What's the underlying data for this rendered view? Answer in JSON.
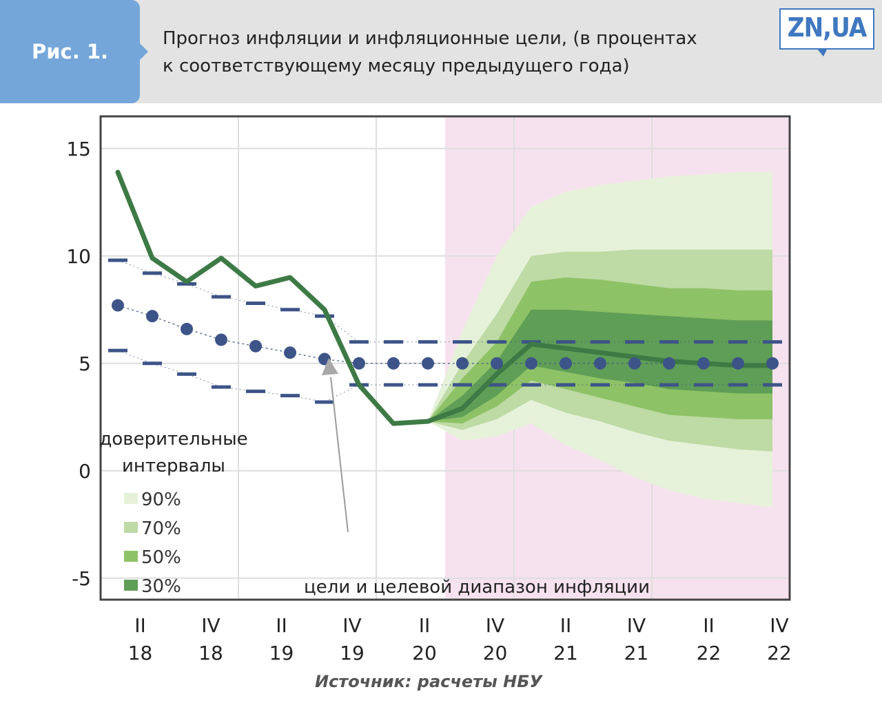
{
  "header": {
    "figure_label": "Рис. 1.",
    "title_line1": "Прогноз инфляции и инфляционные цели, (в процентах",
    "title_line2": "к соответствующему месяцу предыдущего года)",
    "logo": "ZN,UA"
  },
  "source": "Источник: расчеты НБУ",
  "colors": {
    "forecast_shade": "#f6e2ee",
    "band_90": "#e6f1da",
    "band_70": "#bedaa5",
    "band_50": "#8ec266",
    "band_30": "#5f9e56",
    "actual_line": "#3d7a45",
    "target_color": "#3d5488"
  },
  "chart_data": {
    "type": "line",
    "x": [
      0,
      1,
      2,
      3,
      4,
      5,
      6,
      7,
      8,
      9,
      10,
      11,
      12,
      13,
      14,
      15,
      16,
      17,
      18,
      19
    ],
    "x_tick_labels": [
      {
        "x": 0.65,
        "top": "II",
        "bottom": "18"
      },
      {
        "x": 2.7,
        "top": "IV",
        "bottom": "18"
      },
      {
        "x": 4.75,
        "top": "II",
        "bottom": "19"
      },
      {
        "x": 6.8,
        "top": "IV",
        "bottom": "19"
      },
      {
        "x": 8.9,
        "top": "II",
        "bottom": "20"
      },
      {
        "x": 10.95,
        "top": "IV",
        "bottom": "20"
      },
      {
        "x": 13.0,
        "top": "II",
        "bottom": "21"
      },
      {
        "x": 15.05,
        "top": "IV",
        "bottom": "21"
      },
      {
        "x": 17.15,
        "top": "II",
        "bottom": "22"
      },
      {
        "x": 19.2,
        "top": "IV",
        "bottom": "22"
      }
    ],
    "ylim": [
      -6,
      16.5
    ],
    "xlim": [
      -0.5,
      19.5
    ],
    "y_ticks": [
      15,
      10,
      5,
      0,
      -5
    ],
    "vertical_grid_x": [
      3.5,
      7.5,
      11.5,
      15.5
    ],
    "forecast_region_start": 9.5,
    "series": [
      {
        "key": "actual",
        "x": [
          0,
          1,
          2,
          3,
          4,
          5,
          6,
          7,
          8,
          9
        ],
        "values": [
          13.9,
          9.9,
          8.8,
          9.9,
          8.6,
          9.0,
          7.5,
          4.0,
          2.2,
          2.3
        ]
      },
      {
        "key": "forecast_central",
        "x": [
          9,
          10,
          11,
          12,
          13,
          14,
          15,
          16,
          17,
          18,
          19
        ],
        "values": [
          2.3,
          2.9,
          4.5,
          5.9,
          5.7,
          5.5,
          5.3,
          5.1,
          5.0,
          4.9,
          4.9
        ]
      }
    ],
    "confidence_intervals": {
      "x": [
        9,
        10,
        11,
        12,
        13,
        14,
        15,
        16,
        17,
        18,
        19
      ],
      "legend_title_line1": "доверительные",
      "legend_title_line2": "интервалы",
      "bands": [
        {
          "label": "90%",
          "upper": [
            2.3,
            6.5,
            10.0,
            12.3,
            13.0,
            13.3,
            13.5,
            13.7,
            13.8,
            13.9,
            13.9
          ],
          "lower": [
            2.3,
            1.4,
            1.6,
            2.2,
            1.2,
            0.5,
            -0.3,
            -0.9,
            -1.3,
            -1.5,
            -1.7
          ]
        },
        {
          "label": "70%",
          "upper": [
            2.3,
            5.0,
            7.3,
            10.0,
            10.2,
            10.2,
            10.3,
            10.3,
            10.3,
            10.3,
            10.3
          ],
          "lower": [
            2.3,
            1.9,
            2.4,
            3.3,
            2.7,
            2.3,
            1.8,
            1.4,
            1.2,
            1.0,
            0.9
          ]
        },
        {
          "label": "50%",
          "upper": [
            2.3,
            4.3,
            6.0,
            8.8,
            9.0,
            8.9,
            8.7,
            8.5,
            8.5,
            8.4,
            8.4
          ],
          "lower": [
            2.3,
            2.2,
            3.0,
            4.2,
            3.8,
            3.4,
            3.0,
            2.6,
            2.5,
            2.4,
            2.4
          ]
        },
        {
          "label": "30%",
          "upper": [
            2.3,
            3.5,
            5.1,
            7.5,
            7.5,
            7.4,
            7.3,
            7.2,
            7.1,
            7.0,
            7.0
          ],
          "lower": [
            2.3,
            2.5,
            3.5,
            4.9,
            4.6,
            4.3,
            4.1,
            3.8,
            3.7,
            3.6,
            3.6
          ]
        }
      ]
    },
    "targets": {
      "label": "цели и целевой диапазон инфляции",
      "points": {
        "x": [
          0,
          1,
          2,
          3,
          4,
          5,
          6,
          7,
          8,
          9,
          10,
          11,
          12,
          13,
          14,
          15,
          16,
          17,
          18,
          19
        ],
        "values": [
          7.7,
          7.2,
          6.6,
          6.1,
          5.8,
          5.5,
          5.2,
          5,
          5,
          5,
          5,
          5,
          5,
          5,
          5,
          5,
          5,
          5,
          5,
          5
        ]
      },
      "upper": {
        "x": [
          0,
          1,
          2,
          3,
          4,
          5,
          6,
          7,
          8,
          9,
          10,
          11,
          12,
          13,
          14,
          15,
          16,
          17,
          18,
          19
        ],
        "values": [
          9.8,
          9.2,
          8.7,
          8.1,
          7.8,
          7.5,
          7.2,
          6,
          6,
          6,
          6,
          6,
          6,
          6,
          6,
          6,
          6,
          6,
          6,
          6
        ]
      },
      "lower": {
        "x": [
          0,
          1,
          2,
          3,
          4,
          5,
          6,
          7,
          8,
          9,
          10,
          11,
          12,
          13,
          14,
          15,
          16,
          17,
          18,
          19
        ],
        "values": [
          5.6,
          5.0,
          4.5,
          3.9,
          3.7,
          3.5,
          3.2,
          4,
          4,
          4,
          4,
          4,
          4,
          4,
          4,
          4,
          4,
          4,
          4,
          4
        ]
      }
    }
  }
}
